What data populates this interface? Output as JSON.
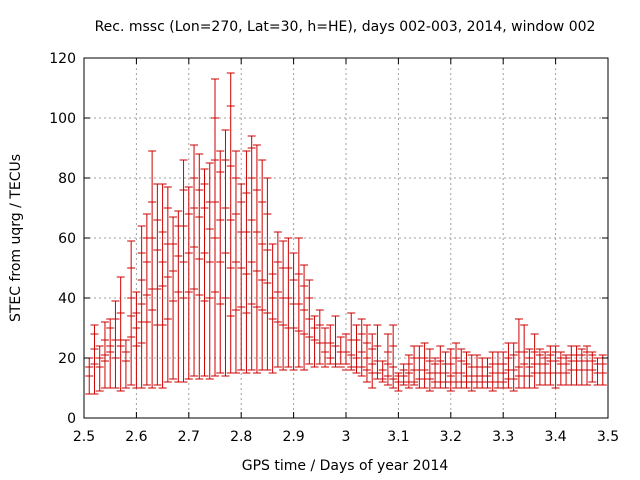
{
  "chart_data": {
    "type": "errorbar",
    "title": "Rec. mssc (Lon=270, Lat=30, h=HE), days 002-003, 2014, window 002",
    "xlabel": "GPS time / Days of year 2014",
    "ylabel": "STEC from uqrg / TECUs",
    "xlim": [
      2.5,
      3.5
    ],
    "ylim": [
      0,
      120
    ],
    "xticks": [
      2.5,
      2.6,
      2.7,
      2.8,
      2.9,
      3.0,
      3.1,
      3.2,
      3.3,
      3.4,
      3.5
    ],
    "xtick_labels": [
      "2.5",
      "2.6",
      "2.7",
      "2.8",
      "2.9",
      "3",
      "3.1",
      "3.2",
      "3.3",
      "3.4",
      "3.5"
    ],
    "yticks": [
      0,
      20,
      40,
      60,
      80,
      100,
      120
    ],
    "ytick_labels": [
      "0",
      "20",
      "40",
      "60",
      "80",
      "100",
      "120"
    ],
    "grid": true,
    "color": "#cc0000",
    "series": [
      {
        "x": [
          2.51,
          2.52,
          2.53,
          2.54,
          2.55,
          2.56,
          2.57,
          2.58,
          2.59,
          2.6,
          2.61,
          2.62,
          2.63,
          2.64,
          2.65,
          2.66,
          2.67,
          2.68,
          2.69,
          2.7,
          2.71,
          2.72,
          2.73,
          2.74,
          2.75,
          2.76,
          2.77,
          2.78,
          2.79,
          2.8,
          2.81,
          2.82,
          2.83,
          2.84,
          2.85,
          2.86,
          2.87,
          2.88,
          2.89,
          2.9,
          2.91,
          2.92,
          2.93,
          2.94,
          2.95,
          2.96,
          2.97,
          2.98,
          2.99,
          3.0,
          3.01,
          3.02,
          3.03,
          3.04,
          3.05,
          3.06,
          3.07,
          3.08,
          3.09,
          3.1,
          3.11,
          3.12,
          3.13,
          3.14,
          3.15,
          3.16,
          3.17,
          3.18,
          3.19,
          3.2,
          3.21,
          3.22,
          3.23,
          3.24,
          3.25,
          3.26,
          3.27,
          3.28,
          3.29,
          3.3,
          3.31,
          3.32,
          3.33,
          3.34,
          3.35,
          3.36,
          3.37,
          3.38,
          3.39,
          3.4,
          3.41,
          3.42,
          3.43,
          3.44,
          3.45,
          3.46,
          3.47,
          3.48,
          3.49
        ],
        "low": [
          8,
          8,
          9,
          10,
          10,
          10,
          9,
          10,
          11,
          10,
          10,
          11,
          10,
          11,
          10,
          12,
          13,
          12,
          12,
          13,
          14,
          13,
          14,
          13,
          14,
          15,
          14,
          15,
          15,
          16,
          15,
          16,
          15,
          16,
          16,
          15,
          17,
          16,
          17,
          16,
          17,
          16,
          18,
          17,
          18,
          17,
          18,
          17,
          18,
          18,
          16,
          15,
          14,
          12,
          10,
          13,
          12,
          11,
          10,
          9,
          11,
          10,
          11,
          10,
          10,
          9,
          10,
          10,
          10,
          9,
          10,
          10,
          10,
          9,
          10,
          10,
          10,
          9,
          10,
          10,
          10,
          9,
          10,
          10,
          10,
          10,
          11,
          11,
          11,
          10,
          11,
          11,
          11,
          11,
          11,
          11,
          12,
          11,
          11
        ],
        "high": [
          20,
          31,
          24,
          32,
          33,
          39,
          47,
          26,
          59,
          42,
          64,
          68,
          89,
          78,
          78,
          77,
          67,
          69,
          86,
          77,
          91,
          88,
          83,
          85,
          113,
          89,
          96,
          115,
          89,
          78,
          89,
          94,
          91,
          86,
          80,
          58,
          62,
          59,
          60,
          55,
          60,
          51,
          46,
          34,
          36,
          30,
          31,
          34,
          27,
          28,
          35,
          31,
          33,
          31,
          28,
          31,
          19,
          28,
          31,
          15,
          18,
          21,
          24,
          24,
          25,
          23,
          20,
          24,
          22,
          23,
          25,
          23,
          22,
          21,
          21,
          20,
          20,
          22,
          22,
          22,
          25,
          25,
          33,
          31,
          23,
          28,
          23,
          22,
          24,
          24,
          22,
          21,
          24,
          24,
          23,
          24,
          22,
          20,
          21
        ],
        "marks": [
          [
            14,
            17
          ],
          [
            18,
            23,
            28
          ],
          [
            17,
            20
          ],
          [
            19,
            21,
            26
          ],
          [
            22,
            24,
            30
          ],
          [
            20,
            26,
            33
          ],
          [
            24,
            26,
            35
          ],
          [
            19,
            22
          ],
          [
            27,
            34,
            40,
            50
          ],
          [
            24,
            30,
            35
          ],
          [
            25,
            32,
            38,
            46,
            55
          ],
          [
            32,
            41,
            52,
            60
          ],
          [
            36,
            43,
            60,
            72
          ],
          [
            31,
            43,
            56,
            66
          ],
          [
            31,
            44,
            52,
            62
          ],
          [
            33,
            47,
            58,
            70
          ],
          [
            39,
            49,
            58
          ],
          [
            42,
            54,
            64
          ],
          [
            40,
            52,
            64,
            76
          ],
          [
            42,
            55,
            68
          ],
          [
            43,
            57,
            70,
            80
          ],
          [
            41,
            53,
            67,
            76
          ],
          [
            39,
            55,
            70,
            78
          ],
          [
            40,
            52,
            63,
            72
          ],
          [
            42,
            60,
            72,
            86,
            100
          ],
          [
            38,
            52,
            66,
            82
          ],
          [
            40,
            55,
            70,
            86
          ],
          [
            34,
            50,
            66,
            84,
            104
          ],
          [
            36,
            52,
            68,
            80
          ],
          [
            37,
            50,
            62,
            72
          ],
          [
            35,
            48,
            62,
            75
          ],
          [
            38,
            52,
            66,
            80,
            90
          ],
          [
            37,
            49,
            62,
            76
          ],
          [
            36,
            46,
            58,
            72
          ],
          [
            35,
            45,
            56,
            68
          ],
          [
            33,
            40,
            48
          ],
          [
            32,
            42,
            52
          ],
          [
            31,
            40,
            50
          ],
          [
            30,
            40,
            50
          ],
          [
            30,
            38,
            46
          ],
          [
            29,
            38,
            48
          ],
          [
            28,
            36,
            44
          ],
          [
            27,
            33,
            40
          ],
          [
            26,
            30
          ],
          [
            25,
            31
          ],
          [
            22,
            25
          ],
          [
            20,
            25
          ],
          [
            18,
            24
          ],
          [
            17,
            22
          ],
          [
            16,
            22
          ],
          [
            17,
            21,
            26
          ],
          [
            17,
            20,
            26
          ],
          [
            17,
            22,
            28
          ],
          [
            16,
            20,
            25
          ],
          [
            15,
            18,
            23
          ],
          [
            15,
            19,
            24
          ],
          [
            13,
            16
          ],
          [
            14,
            18,
            22
          ],
          [
            13,
            17,
            24
          ],
          [
            12,
            14
          ],
          [
            12,
            14,
            16
          ],
          [
            12,
            15,
            18
          ],
          [
            12,
            16,
            20
          ],
          [
            13,
            16,
            20
          ],
          [
            13,
            16,
            20
          ],
          [
            13,
            15,
            19
          ],
          [
            12,
            15,
            18
          ],
          [
            12,
            15,
            19
          ],
          [
            12,
            15,
            18
          ],
          [
            12,
            14,
            18
          ],
          [
            12,
            15,
            20
          ],
          [
            12,
            15,
            19
          ],
          [
            12,
            14,
            18
          ],
          [
            12,
            14,
            17
          ],
          [
            12,
            14,
            17
          ],
          [
            12,
            14,
            17
          ],
          [
            12,
            14,
            17
          ],
          [
            12,
            15,
            18
          ],
          [
            12,
            15,
            18
          ],
          [
            12,
            15,
            18
          ],
          [
            13,
            16,
            20
          ],
          [
            13,
            16,
            21
          ],
          [
            14,
            17,
            22
          ],
          [
            14,
            18,
            22
          ],
          [
            14,
            17,
            20
          ],
          [
            15,
            18,
            22
          ],
          [
            15,
            18,
            21
          ],
          [
            15,
            18,
            20
          ],
          [
            15,
            19,
            21
          ],
          [
            15,
            19,
            22
          ],
          [
            15,
            18,
            20
          ],
          [
            15,
            18,
            20
          ],
          [
            16,
            19,
            21
          ],
          [
            16,
            19,
            21
          ],
          [
            16,
            19,
            21
          ],
          [
            16,
            19,
            22
          ],
          [
            16,
            19,
            21
          ],
          [
            15,
            18,
            20
          ],
          [
            15,
            18,
            20
          ]
        ]
      }
    ]
  }
}
